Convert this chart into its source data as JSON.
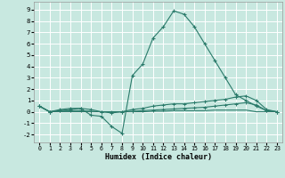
{
  "xlabel": "Humidex (Indice chaleur)",
  "xlim": [
    -0.5,
    23.5
  ],
  "ylim": [
    -2.7,
    9.7
  ],
  "xticks": [
    0,
    1,
    2,
    3,
    4,
    5,
    6,
    7,
    8,
    9,
    10,
    11,
    12,
    13,
    14,
    15,
    16,
    17,
    18,
    19,
    20,
    21,
    22,
    23
  ],
  "yticks": [
    -2,
    -1,
    0,
    1,
    2,
    3,
    4,
    5,
    6,
    7,
    8,
    9
  ],
  "bg_color": "#c8e8e0",
  "line_color": "#2a7a6a",
  "grid_color": "#ffffff",
  "series0": [
    0.5,
    0.0,
    0.2,
    0.3,
    0.3,
    -0.3,
    -0.4,
    -1.3,
    -1.9,
    3.2,
    4.2,
    6.5,
    7.5,
    8.9,
    8.6,
    7.5,
    6.0,
    4.5,
    3.0,
    1.5,
    1.0,
    0.5,
    0.1,
    0.0
  ],
  "series1": [
    0.5,
    0.0,
    0.1,
    0.2,
    0.3,
    0.2,
    0.0,
    -0.1,
    0.0,
    0.2,
    0.3,
    0.5,
    0.6,
    0.7,
    0.7,
    0.8,
    0.9,
    1.0,
    1.1,
    1.3,
    1.4,
    1.0,
    0.2,
    0.0
  ],
  "series2": [
    0.5,
    0.0,
    0.1,
    0.1,
    0.1,
    0.05,
    0.0,
    0.0,
    0.0,
    0.05,
    0.1,
    0.15,
    0.2,
    0.25,
    0.3,
    0.35,
    0.4,
    0.5,
    0.6,
    0.7,
    0.8,
    0.6,
    0.1,
    0.0
  ],
  "series3": [
    0.5,
    0.0,
    0.0,
    0.0,
    0.0,
    0.0,
    0.0,
    0.0,
    0.0,
    0.0,
    0.0,
    0.05,
    0.05,
    0.1,
    0.1,
    0.1,
    0.1,
    0.15,
    0.15,
    0.15,
    0.15,
    0.0,
    0.0,
    0.0
  ]
}
